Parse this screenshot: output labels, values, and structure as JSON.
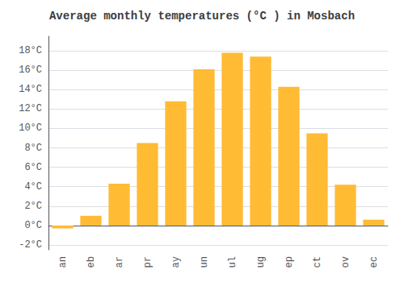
{
  "chart_data": {
    "type": "bar",
    "title": "Average monthly temperatures (°C ) in Mosbach",
    "categories": [
      "an",
      "eb",
      "ar",
      "pr",
      "ay",
      "un",
      "ul",
      "ug",
      "ep",
      "ct",
      "ov",
      "ec"
    ],
    "values": [
      -0.3,
      1.0,
      4.3,
      8.5,
      12.8,
      16.1,
      17.8,
      17.4,
      14.3,
      9.5,
      4.2,
      0.6
    ],
    "color": "#FFBB33",
    "ylim": [
      -2.5,
      19.5
    ],
    "yticks": [
      {
        "value": -2,
        "label": "-2°C"
      },
      {
        "value": 0,
        "label": "0°C"
      },
      {
        "value": 2,
        "label": "2°C"
      },
      {
        "value": 4,
        "label": "4°C"
      },
      {
        "value": 6,
        "label": "6°C"
      },
      {
        "value": 8,
        "label": "8°C"
      },
      {
        "value": 10,
        "label": "10°C"
      },
      {
        "value": 12,
        "label": "12°C"
      },
      {
        "value": 14,
        "label": "14°C"
      },
      {
        "value": 16,
        "label": "16°C"
      },
      {
        "value": 18,
        "label": "18°C"
      }
    ],
    "grid": true
  }
}
